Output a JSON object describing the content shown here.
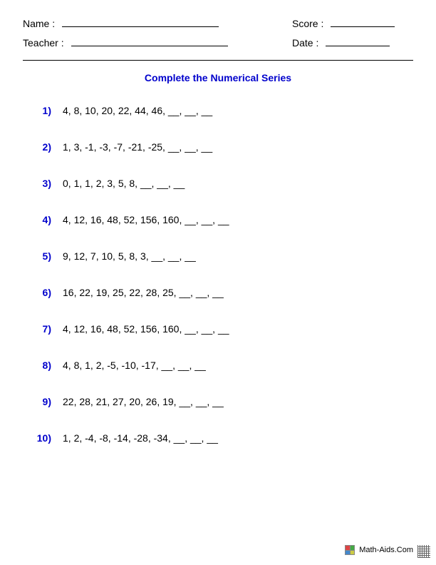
{
  "header": {
    "name_label": "Name :",
    "teacher_label": "Teacher :",
    "score_label": "Score :",
    "date_label": "Date :"
  },
  "title": "Complete the Numerical Series",
  "problems": [
    {
      "num": "1)",
      "seq": "4,  8,  10,  20,  22,  44,  46,  __,  __,  __"
    },
    {
      "num": "2)",
      "seq": "1,  3,  -1,  -3,  -7,  -21,  -25,  __,  __,  __"
    },
    {
      "num": "3)",
      "seq": "0,  1,  1,  2,  3,  5,  8,  __,  __,  __"
    },
    {
      "num": "4)",
      "seq": "4,  12,  16,  48,  52,  156,  160,  __,  __,  __"
    },
    {
      "num": "5)",
      "seq": "9,  12,  7,  10,  5,  8,  3,  __,  __,  __"
    },
    {
      "num": "6)",
      "seq": "16,  22,  19,  25,  22,  28,  25,  __,  __,  __"
    },
    {
      "num": "7)",
      "seq": "4,  12,  16,  48,  52,  156,  160,  __,  __,  __"
    },
    {
      "num": "8)",
      "seq": "4,  8,  1,  2,  -5,  -10,  -17,  __,  __,  __"
    },
    {
      "num": "9)",
      "seq": "22,  28,  21,  27,  20,  26,  19,  __,  __,  __"
    },
    {
      "num": "10)",
      "seq": "1,  2,  -4,  -8,  -14,  -28,  -34,  __,  __,  __"
    }
  ],
  "footer": {
    "site": "Math-Aids.Com"
  }
}
